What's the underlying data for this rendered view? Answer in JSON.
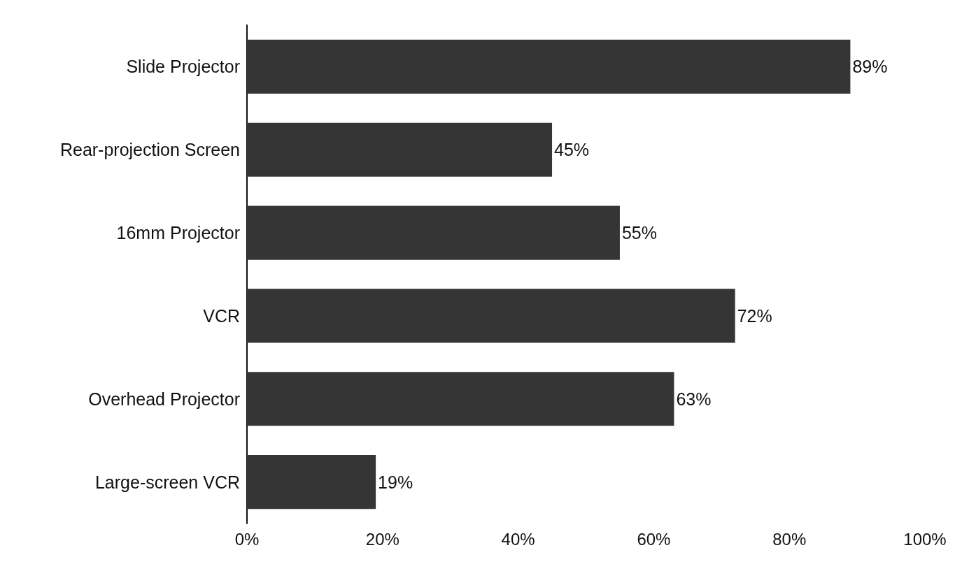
{
  "chart_data": {
    "type": "bar",
    "orientation": "horizontal",
    "categories": [
      "Slide Projector",
      "Rear-projection Screen",
      "16mm Projector",
      "VCR",
      "Overhead Projector",
      "Large-screen VCR"
    ],
    "values": [
      89,
      45,
      55,
      72,
      63,
      19
    ],
    "value_labels": [
      "89%",
      "45%",
      "55%",
      "72%",
      "63%",
      "19%"
    ],
    "color": "#353535",
    "xlim": [
      0,
      100
    ],
    "xticks": [
      {
        "value": 0,
        "label": "0%"
      },
      {
        "value": 20,
        "label": "20%"
      },
      {
        "value": 40,
        "label": "40%"
      },
      {
        "value": 60,
        "label": "60%"
      },
      {
        "value": 80,
        "label": "80%"
      },
      {
        "value": 100,
        "label": "100%"
      }
    ],
    "grid": false
  }
}
